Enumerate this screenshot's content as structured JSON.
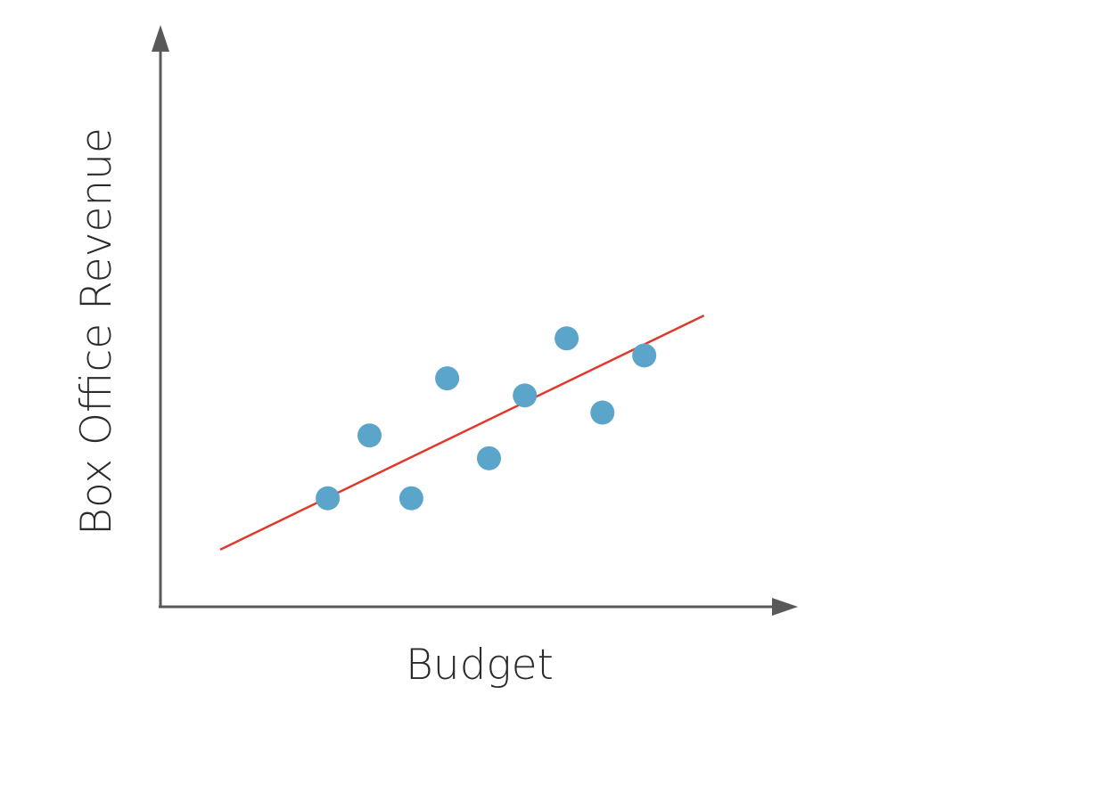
{
  "chart_data": {
    "type": "scatter",
    "title": "",
    "xlabel": "Budget",
    "ylabel": "Box Office Revenue",
    "xlim": [
      0,
      10
    ],
    "ylim": [
      0,
      10
    ],
    "grid": false,
    "axis_ticks": false,
    "series": [
      {
        "points": [
          {
            "x": 2.8,
            "y": 1.9
          },
          {
            "x": 3.5,
            "y": 3.0
          },
          {
            "x": 4.2,
            "y": 1.9
          },
          {
            "x": 4.8,
            "y": 4.0
          },
          {
            "x": 5.5,
            "y": 2.6
          },
          {
            "x": 6.1,
            "y": 3.7
          },
          {
            "x": 6.8,
            "y": 4.7
          },
          {
            "x": 7.4,
            "y": 3.4
          },
          {
            "x": 8.1,
            "y": 4.4
          }
        ]
      }
    ],
    "trendline": {
      "x": [
        1.0,
        9.1
      ],
      "y": [
        1.0,
        5.1
      ]
    },
    "colors": {
      "points": "#5aa5c9",
      "trendline": "#e0392b",
      "axes": "#595959"
    }
  }
}
